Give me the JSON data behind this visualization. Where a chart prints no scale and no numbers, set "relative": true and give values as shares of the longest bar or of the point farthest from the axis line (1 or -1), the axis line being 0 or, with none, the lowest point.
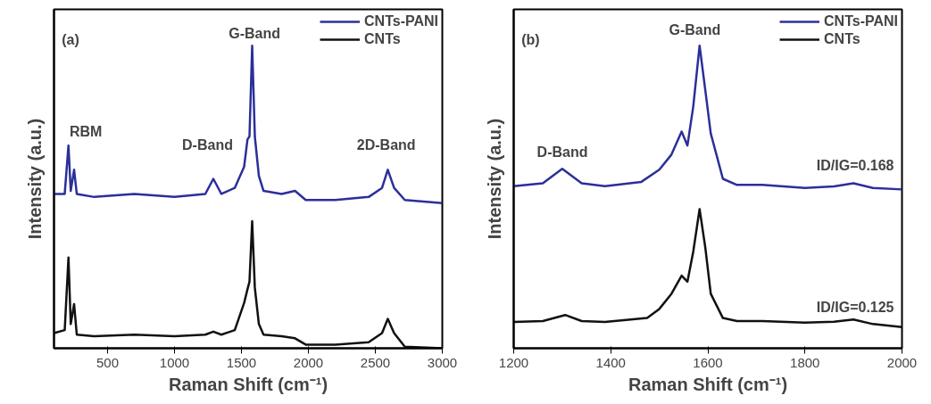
{
  "chart_data": [
    {
      "type": "line",
      "relative": true,
      "xlabel": "Raman Shift (cm⁻¹)",
      "ylabel": "Intensity (a.u.)",
      "xlim": [
        100,
        3000
      ],
      "xticks": [
        500,
        1000,
        1500,
        2000,
        2500,
        3000
      ],
      "legend": "top right",
      "line_style": "solid",
      "marker": "none",
      "annotations": [
        "(a)",
        "RBM",
        "D-Band",
        "G-Band",
        "2D-Band"
      ],
      "series": [
        {
          "name": "CNTs-PANI",
          "color": "#2b2f9a",
          "x": [
            100,
            180,
            208,
            225,
            250,
            270,
            400,
            700,
            1000,
            1230,
            1290,
            1350,
            1450,
            1520,
            1545,
            1560,
            1580,
            1600,
            1630,
            1665,
            1800,
            1900,
            1980,
            2200,
            2450,
            2550,
            2593,
            2640,
            2720,
            3000
          ],
          "values": [
            0.51,
            0.51,
            0.67,
            0.52,
            0.59,
            0.51,
            0.5,
            0.51,
            0.5,
            0.51,
            0.56,
            0.51,
            0.53,
            0.6,
            0.69,
            0.7,
            1.0,
            0.7,
            0.57,
            0.52,
            0.51,
            0.52,
            0.49,
            0.49,
            0.5,
            0.53,
            0.59,
            0.53,
            0.49,
            0.48
          ]
        },
        {
          "name": "CNTs",
          "color": "#111111",
          "x": [
            100,
            180,
            208,
            225,
            250,
            270,
            400,
            700,
            1000,
            1230,
            1290,
            1350,
            1450,
            1520,
            1545,
            1560,
            1580,
            1600,
            1630,
            1665,
            1800,
            1900,
            1980,
            2200,
            2450,
            2550,
            2593,
            2640,
            2720,
            3000
          ],
          "values": [
            0.05,
            0.06,
            0.3,
            0.08,
            0.146,
            0.045,
            0.04,
            0.045,
            0.04,
            0.045,
            0.055,
            0.045,
            0.06,
            0.15,
            0.195,
            0.22,
            0.42,
            0.2,
            0.08,
            0.045,
            0.04,
            0.033,
            0.012,
            0.012,
            0.02,
            0.05,
            0.097,
            0.05,
            0.005,
            0.0
          ]
        }
      ]
    },
    {
      "type": "line",
      "relative": true,
      "xlabel": "Raman Shift (cm⁻¹)",
      "ylabel": "Intensity (a.u.)",
      "xlim": [
        1200,
        2000
      ],
      "xticks": [
        1200,
        1400,
        1600,
        1800,
        2000
      ],
      "legend": "top right",
      "line_style": "solid",
      "marker": "none",
      "annotations": [
        "(b)",
        "D-Band",
        "G-Band",
        "ID/IG=0.168",
        "ID/IG=0.125"
      ],
      "series": [
        {
          "name": "CNTs-PANI",
          "color": "#2b2f9a",
          "x": [
            1200,
            1260,
            1300,
            1340,
            1388,
            1463,
            1500,
            1525,
            1546,
            1558,
            1570,
            1583,
            1595,
            1606,
            1631,
            1660,
            1712,
            1800,
            1860,
            1900,
            1940,
            2000
          ],
          "values": [
            0.536,
            0.545,
            0.593,
            0.545,
            0.536,
            0.55,
            0.59,
            0.64,
            0.716,
            0.67,
            0.8,
            1.0,
            0.85,
            0.71,
            0.56,
            0.54,
            0.54,
            0.53,
            0.535,
            0.545,
            0.53,
            0.525
          ]
        },
        {
          "name": "CNTs",
          "color": "#111111",
          "x": [
            1200,
            1260,
            1306,
            1340,
            1388,
            1475,
            1500,
            1525,
            1546,
            1558,
            1570,
            1583,
            1595,
            1606,
            1631,
            1660,
            1712,
            1800,
            1860,
            1900,
            1940,
            2000
          ],
          "values": [
            0.087,
            0.09,
            0.11,
            0.09,
            0.087,
            0.1,
            0.13,
            0.18,
            0.24,
            0.22,
            0.32,
            0.46,
            0.33,
            0.18,
            0.1,
            0.09,
            0.09,
            0.085,
            0.088,
            0.095,
            0.08,
            0.07
          ]
        }
      ]
    }
  ]
}
